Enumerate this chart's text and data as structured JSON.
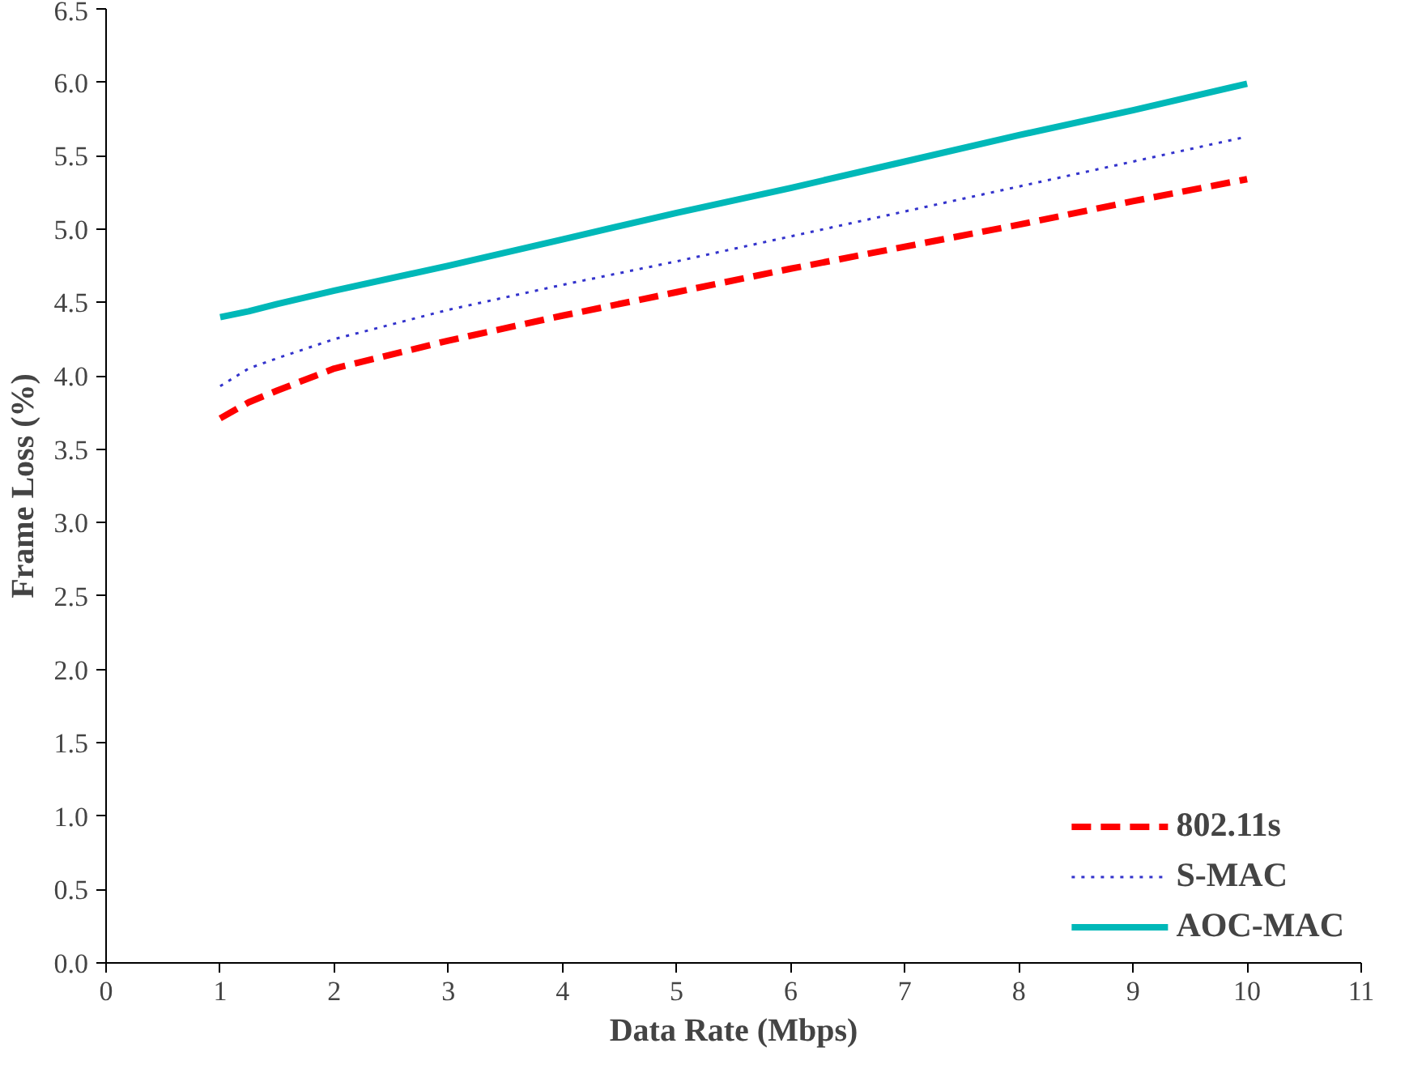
{
  "chart_data": {
    "type": "line",
    "xlabel": "Data Rate (Mbps)",
    "ylabel": "Frame Loss (%)",
    "x": [
      1,
      1.25,
      1.5,
      2,
      3,
      4,
      5,
      6,
      7,
      8,
      9,
      10
    ],
    "series": [
      {
        "name": "802.11s",
        "color": "#ff0000",
        "line_style": "dashed",
        "values": [
          3.71,
          3.82,
          3.9,
          4.05,
          4.24,
          4.41,
          4.57,
          4.73,
          4.88,
          5.03,
          5.19,
          5.34
        ]
      },
      {
        "name": "S-MAC",
        "color": "#3333cc",
        "line_style": "dotted",
        "values": [
          3.93,
          4.05,
          4.12,
          4.25,
          4.45,
          4.62,
          4.78,
          4.95,
          5.12,
          5.29,
          5.46,
          5.63
        ]
      },
      {
        "name": "AOC-MAC",
        "color": "#00b8b8",
        "line_style": "solid",
        "values": [
          4.4,
          4.44,
          4.49,
          4.58,
          4.75,
          4.93,
          5.11,
          5.28,
          5.46,
          5.64,
          5.81,
          5.99
        ]
      }
    ],
    "xlim": [
      0,
      11
    ],
    "xticks": [
      0,
      1,
      2,
      3,
      4,
      5,
      6,
      7,
      8,
      9,
      10,
      11
    ],
    "ylim": [
      0,
      6.5
    ],
    "yticks": [
      {
        "value": 0,
        "label": "0.0"
      },
      {
        "value": 0.5,
        "label": "0.5"
      },
      {
        "value": 1,
        "label": "1.0"
      },
      {
        "value": 1.5,
        "label": "1.5"
      },
      {
        "value": 2,
        "label": "2.0"
      },
      {
        "value": 2.5,
        "label": "2.5"
      },
      {
        "value": 3,
        "label": "3.0"
      },
      {
        "value": 3.5,
        "label": "3.5"
      },
      {
        "value": 4,
        "label": "4.0"
      },
      {
        "value": 4.5,
        "label": "4.5"
      },
      {
        "value": 5,
        "label": "5.0"
      },
      {
        "value": 5.5,
        "label": "5.5"
      },
      {
        "value": 6,
        "label": "6.0"
      },
      {
        "value": 6.5,
        "label": "6.5"
      }
    ],
    "grid": false,
    "legend": "bottom right",
    "marker": "none"
  }
}
